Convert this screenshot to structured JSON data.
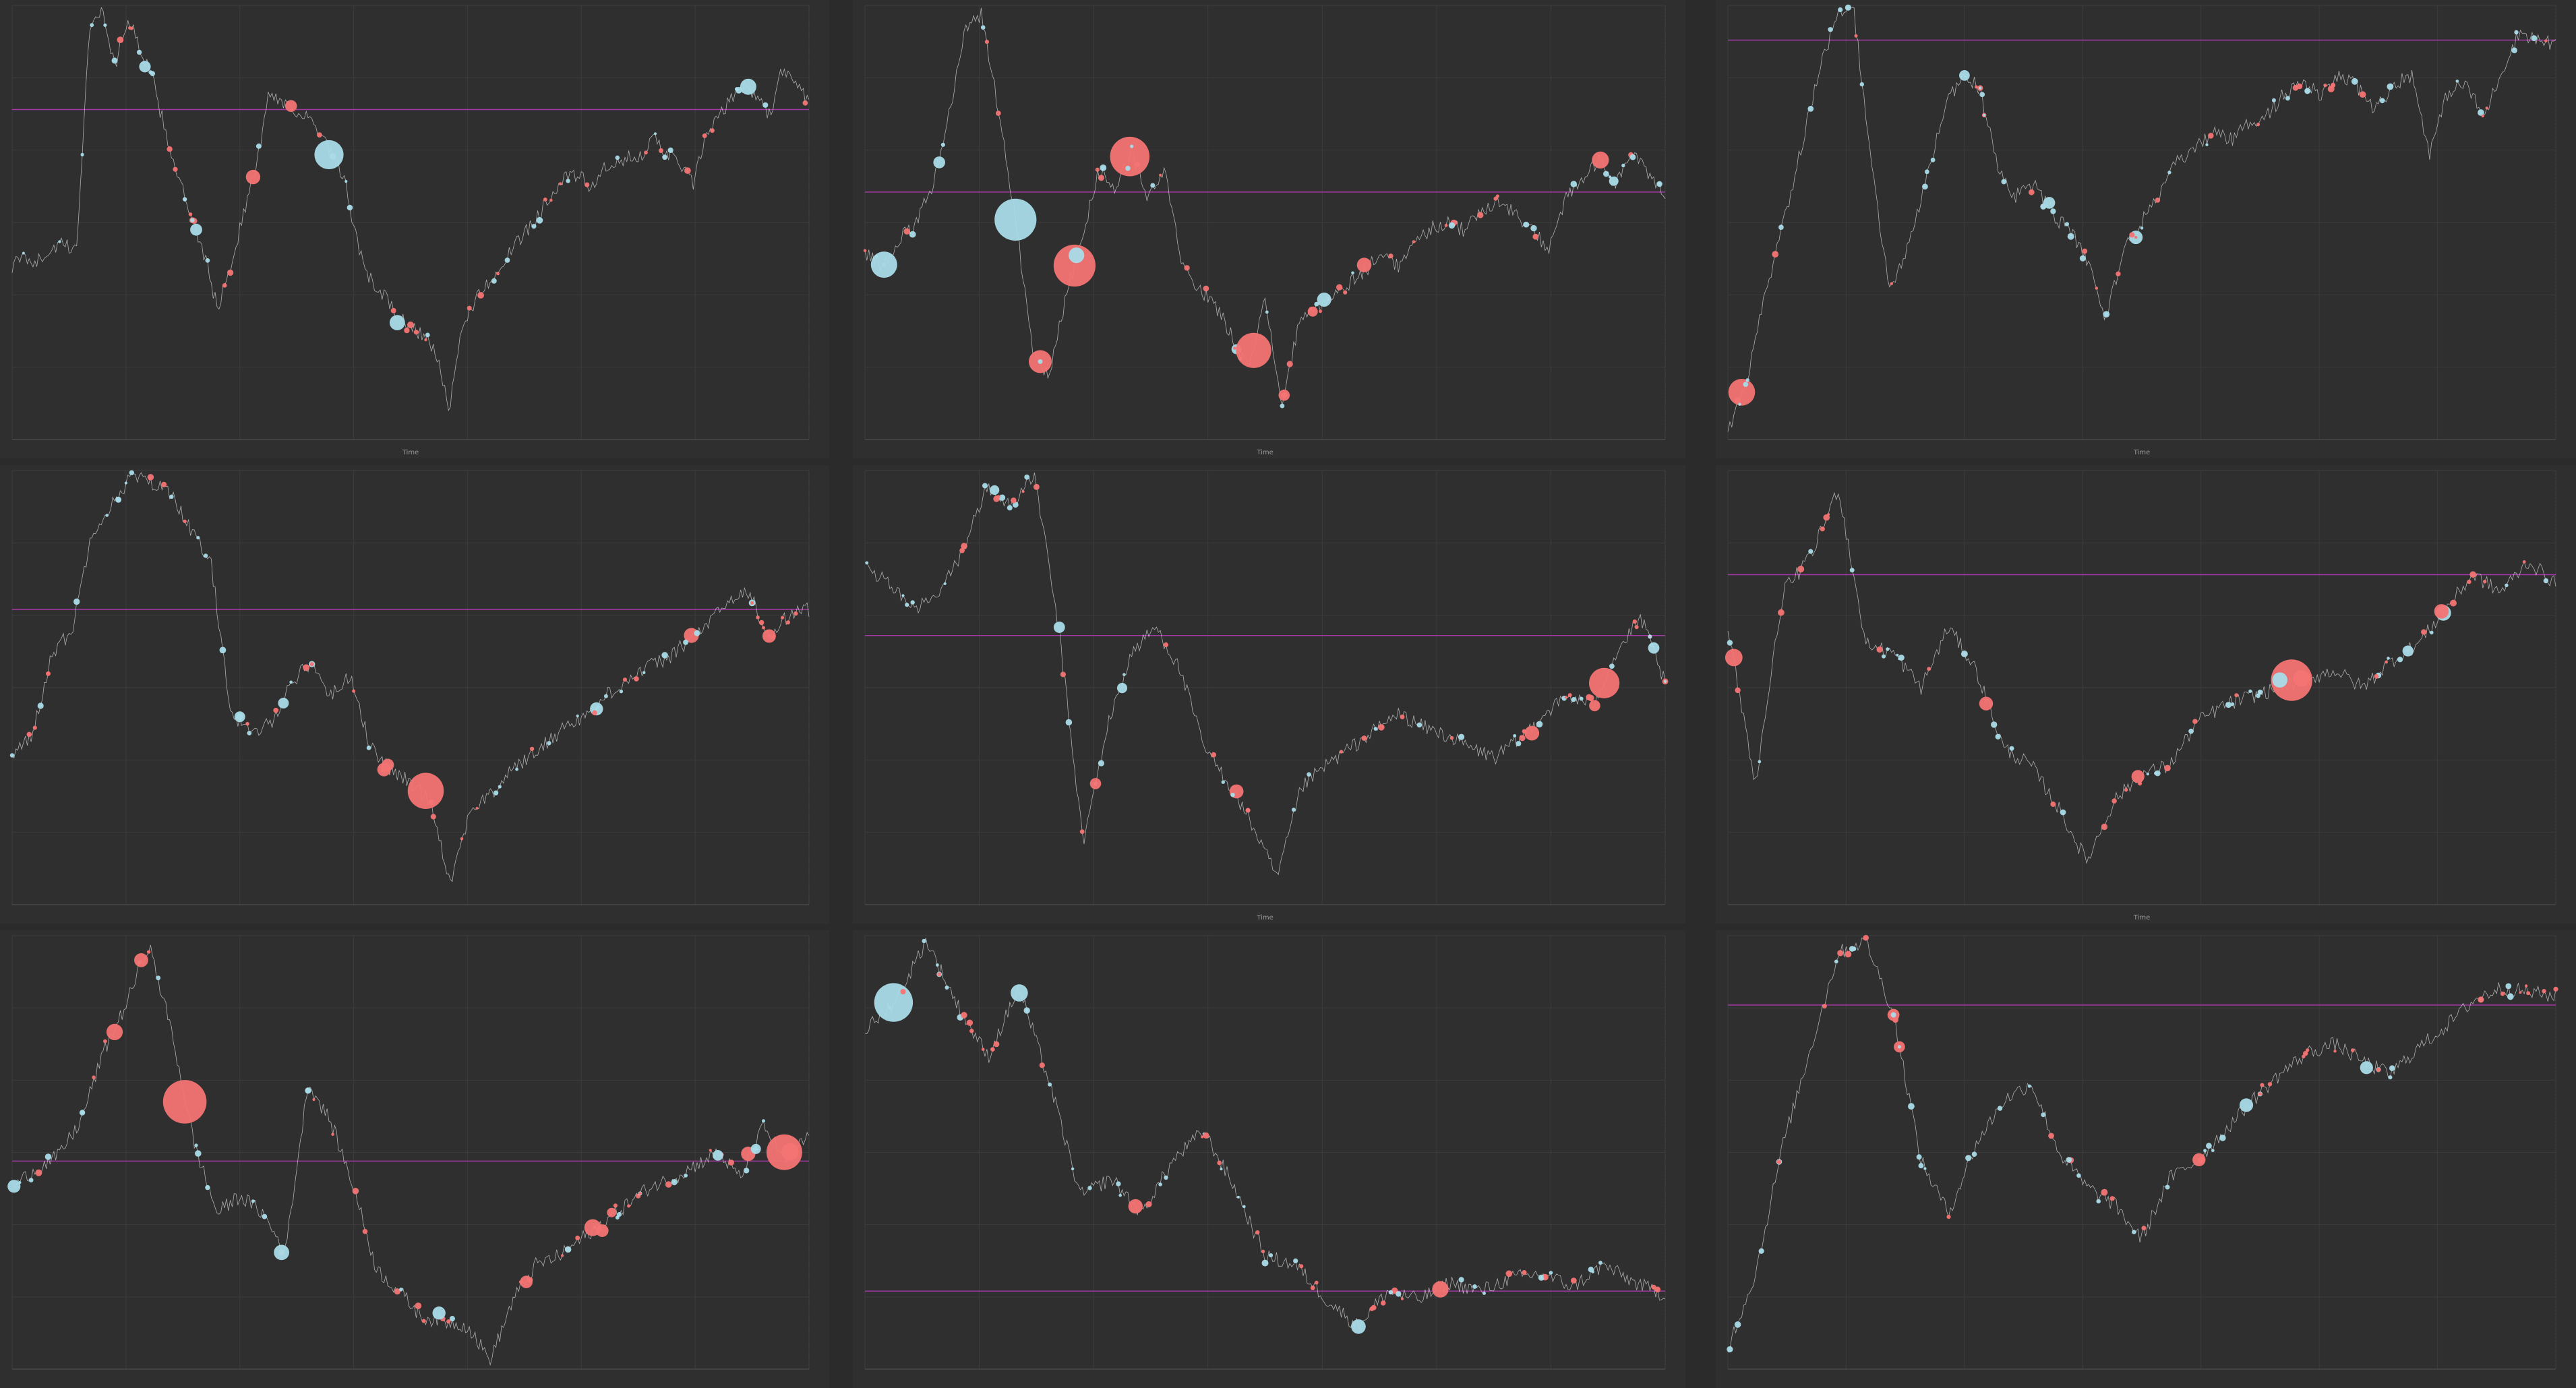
{
  "colors": {
    "background": "#2b2b2b",
    "panel": "#2f2f2f",
    "grid": "#3c3c3c",
    "buy": "#f47373",
    "sell": "#a9dbe8",
    "price": "#d9d9d9",
    "reference": "#a33aa3"
  },
  "chart_data": [
    {
      "type": "scatter",
      "xlabel": "Time",
      "ylabel": "",
      "grid": true,
      "legend": "none",
      "reference_level": 0.76,
      "price_path": [
        0.4,
        0.42,
        0.41,
        0.44,
        0.45,
        0.43,
        0.95,
        0.99,
        0.86,
        0.97,
        0.9,
        0.82,
        0.7,
        0.6,
        0.5,
        0.42,
        0.3,
        0.4,
        0.52,
        0.63,
        0.8,
        0.78,
        0.76,
        0.74,
        0.7,
        0.65,
        0.58,
        0.43,
        0.36,
        0.33,
        0.28,
        0.26,
        0.24,
        0.2,
        0.06,
        0.26,
        0.32,
        0.36,
        0.4,
        0.44,
        0.48,
        0.52,
        0.57,
        0.6,
        0.61,
        0.58,
        0.62,
        0.63,
        0.65,
        0.66,
        0.69,
        0.66,
        0.63,
        0.59,
        0.7,
        0.74,
        0.79,
        0.82,
        0.78,
        0.75,
        0.86,
        0.82,
        0.78
      ]
    },
    {
      "type": "scatter",
      "xlabel": "Time",
      "ylabel": "",
      "grid": true,
      "legend": "none",
      "reference_level": 0.57,
      "price_path": [
        0.43,
        0.4,
        0.46,
        0.49,
        0.58,
        0.74,
        0.95,
        0.98,
        0.76,
        0.52,
        0.22,
        0.14,
        0.32,
        0.46,
        0.62,
        0.58,
        0.66,
        0.55,
        0.62,
        0.4,
        0.35,
        0.31,
        0.24,
        0.17,
        0.32,
        0.08,
        0.26,
        0.3,
        0.33,
        0.36,
        0.39,
        0.43,
        0.4,
        0.45,
        0.49,
        0.5,
        0.48,
        0.53,
        0.55,
        0.52,
        0.48,
        0.44,
        0.55,
        0.6,
        0.64,
        0.59,
        0.66,
        0.61,
        0.57
      ]
    },
    {
      "type": "scatter",
      "xlabel": "Time",
      "ylabel": "",
      "grid": true,
      "legend": "none",
      "reference_level": 0.92,
      "price_path": [
        0.02,
        0.12,
        0.32,
        0.48,
        0.66,
        0.84,
        0.97,
        0.99,
        0.62,
        0.34,
        0.44,
        0.59,
        0.76,
        0.84,
        0.81,
        0.62,
        0.56,
        0.59,
        0.52,
        0.48,
        0.41,
        0.28,
        0.44,
        0.5,
        0.57,
        0.64,
        0.67,
        0.71,
        0.69,
        0.73,
        0.75,
        0.8,
        0.82,
        0.79,
        0.84,
        0.81,
        0.76,
        0.82,
        0.84,
        0.66,
        0.8,
        0.82,
        0.74,
        0.85,
        0.94,
        0.92,
        0.91
      ]
    },
    {
      "type": "scatter",
      "xlabel": "",
      "ylabel": "",
      "grid": true,
      "legend": "none",
      "reference_level": 0.68,
      "price_path": [
        0.34,
        0.39,
        0.58,
        0.63,
        0.86,
        0.92,
        0.99,
        0.97,
        0.95,
        0.86,
        0.78,
        0.44,
        0.39,
        0.42,
        0.51,
        0.56,
        0.48,
        0.53,
        0.36,
        0.31,
        0.28,
        0.24,
        0.05,
        0.22,
        0.25,
        0.31,
        0.34,
        0.38,
        0.42,
        0.44,
        0.49,
        0.52,
        0.55,
        0.57,
        0.61,
        0.65,
        0.7,
        0.72,
        0.61,
        0.67,
        0.68
      ]
    },
    {
      "type": "scatter",
      "xlabel": "Time",
      "ylabel": "",
      "grid": true,
      "legend": "none",
      "reference_level": 0.62,
      "price_path": [
        0.78,
        0.74,
        0.68,
        0.71,
        0.81,
        0.96,
        0.92,
        0.99,
        0.63,
        0.14,
        0.41,
        0.58,
        0.64,
        0.54,
        0.36,
        0.28,
        0.18,
        0.06,
        0.27,
        0.32,
        0.36,
        0.4,
        0.44,
        0.41,
        0.39,
        0.36,
        0.34,
        0.38,
        0.44,
        0.48,
        0.46,
        0.58,
        0.66,
        0.51
      ]
    },
    {
      "type": "scatter",
      "xlabel": "Time",
      "ylabel": "",
      "grid": true,
      "legend": "none",
      "reference_level": 0.76,
      "price_path": [
        0.63,
        0.28,
        0.72,
        0.8,
        0.96,
        0.6,
        0.58,
        0.5,
        0.64,
        0.54,
        0.36,
        0.32,
        0.22,
        0.1,
        0.24,
        0.3,
        0.32,
        0.42,
        0.46,
        0.48,
        0.5,
        0.52,
        0.54,
        0.5,
        0.56,
        0.6,
        0.68,
        0.76,
        0.72,
        0.79,
        0.74
      ]
    },
    {
      "type": "scatter",
      "xlabel": "",
      "ylabel": "",
      "grid": true,
      "legend": "none",
      "reference_level": 0.48,
      "price_path": [
        0.42,
        0.46,
        0.49,
        0.57,
        0.73,
        0.84,
        0.98,
        0.78,
        0.52,
        0.36,
        0.4,
        0.36,
        0.27,
        0.66,
        0.57,
        0.42,
        0.23,
        0.18,
        0.12,
        0.11,
        0.1,
        0.02,
        0.16,
        0.24,
        0.26,
        0.3,
        0.34,
        0.38,
        0.42,
        0.44,
        0.47,
        0.5,
        0.44,
        0.56,
        0.48,
        0.54
      ]
    },
    {
      "type": "scatter",
      "xlabel": "",
      "ylabel": "",
      "grid": true,
      "legend": "none",
      "reference_level": 0.18,
      "price_path": [
        0.78,
        0.85,
        0.99,
        0.84,
        0.72,
        0.88,
        0.66,
        0.4,
        0.44,
        0.36,
        0.48,
        0.55,
        0.42,
        0.26,
        0.24,
        0.16,
        0.1,
        0.18,
        0.16,
        0.2,
        0.18,
        0.21,
        0.22,
        0.19,
        0.24,
        0.2,
        0.17
      ]
    },
    {
      "type": "scatter",
      "xlabel": "",
      "ylabel": "",
      "grid": true,
      "legend": "none",
      "reference_level": 0.84,
      "price_path": [
        0.05,
        0.22,
        0.52,
        0.74,
        0.96,
        0.99,
        0.82,
        0.48,
        0.36,
        0.52,
        0.62,
        0.66,
        0.5,
        0.42,
        0.38,
        0.3,
        0.44,
        0.48,
        0.55,
        0.62,
        0.68,
        0.73,
        0.75,
        0.71,
        0.68,
        0.74,
        0.79,
        0.85,
        0.88,
        0.87,
        0.86
      ]
    }
  ]
}
